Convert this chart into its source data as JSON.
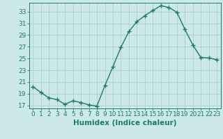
{
  "x": [
    0,
    1,
    2,
    3,
    4,
    5,
    6,
    7,
    8,
    9,
    10,
    11,
    12,
    13,
    14,
    15,
    16,
    17,
    18,
    19,
    20,
    21,
    22,
    23
  ],
  "y": [
    20.2,
    19.2,
    18.3,
    18.0,
    17.2,
    17.8,
    17.5,
    17.1,
    16.9,
    20.4,
    23.6,
    26.9,
    29.6,
    31.3,
    32.3,
    33.2,
    34.0,
    33.7,
    32.9,
    30.0,
    27.3,
    25.2,
    25.1,
    24.8
  ],
  "line_color": "#1a7a6e",
  "marker": "+",
  "marker_color": "#1a7a6e",
  "bg_color": "#cce8e8",
  "grid_color": "#aacfcf",
  "xlabel": "Humidex (Indice chaleur)",
  "xlim": [
    -0.5,
    23.5
  ],
  "ylim": [
    16.5,
    34.5
  ],
  "yticks": [
    17,
    19,
    21,
    23,
    25,
    27,
    29,
    31,
    33
  ],
  "xticks": [
    0,
    1,
    2,
    3,
    4,
    5,
    6,
    7,
    8,
    9,
    10,
    11,
    12,
    13,
    14,
    15,
    16,
    17,
    18,
    19,
    20,
    21,
    22,
    23
  ],
  "tick_color": "#1a7a6e",
  "label_color": "#1a7a6e",
  "font_size": 6.5,
  "xlabel_fontsize": 7.5,
  "linewidth": 1.0,
  "markersize": 4
}
